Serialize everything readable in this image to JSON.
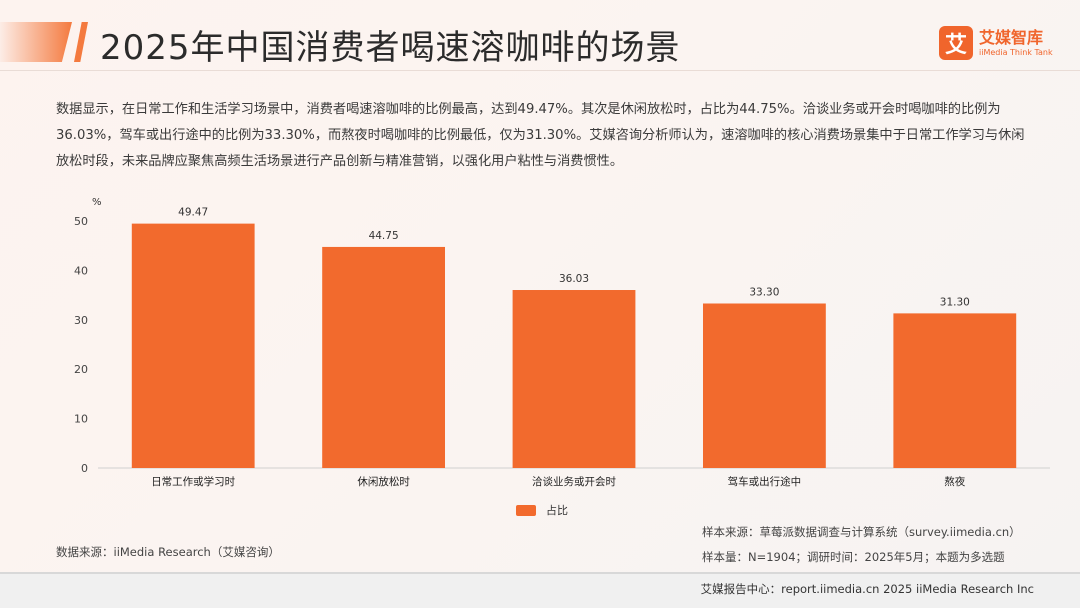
{
  "header": {
    "title": "2025年中国消费者喝速溶咖啡的场景",
    "logo_mark": "艾",
    "logo_cn": "艾媒智库",
    "logo_en": "iiMedia Think Tank"
  },
  "summary": "数据显示，在日常工作和生活学习场景中，消费者喝速溶咖啡的比例最高，达到49.47%。其次是休闲放松时，占比为44.75%。洽谈业务或开会时喝咖啡的比例为36.03%，驾车或出行途中的比例为33.30%，而熬夜时喝咖啡的比例最低，仅为31.30%。艾媒咨询分析师认为，速溶咖啡的核心消费场景集中于日常工作学习与休闲放松时段，未来品牌应聚焦高频生活场景进行产品创新与精准营销，以强化用户粘性与消费惯性。",
  "chart_data": {
    "type": "bar",
    "unit": "%",
    "categories": [
      "日常工作或学习时",
      "休闲放松时",
      "洽谈业务或开会时",
      "驾车或出行途中",
      "熬夜"
    ],
    "values": [
      49.47,
      44.75,
      36.03,
      33.3,
      31.3
    ],
    "value_labels": [
      "49.47",
      "44.75",
      "36.03",
      "33.30",
      "31.30"
    ],
    "series": [
      {
        "name": "占比",
        "values": [
          49.47,
          44.75,
          36.03,
          33.3,
          31.3
        ]
      }
    ],
    "ylim": [
      0,
      50
    ],
    "yticks": [
      0,
      10,
      20,
      30,
      40,
      50
    ],
    "grid": false,
    "legend_position": "bottom",
    "bar_color": "#f26a2d"
  },
  "legend_label": "占比",
  "source": "数据来源：iiMedia Research（艾媒咨询）",
  "sample_source": "样本来源：草莓派数据调查与计算系统（survey.iimedia.cn）",
  "sample_size": "样本量：N=1904；调研时间：2025年5月；本题为多选题",
  "footer": "艾媒报告中心：report.iimedia.cn  2025 iiMedia Research Inc"
}
